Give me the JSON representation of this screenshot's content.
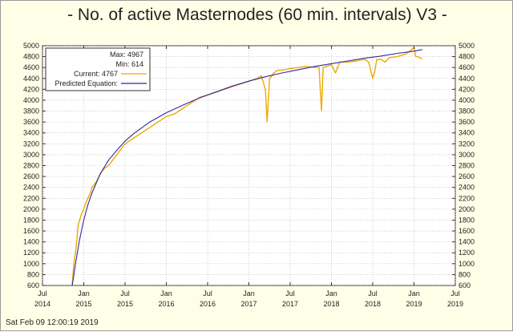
{
  "timestamp": "Sat Feb 09 12:00:19 2019",
  "chart_data": {
    "type": "line",
    "title": "- No. of active Masternodes (60 min. intervals) V3 -",
    "ylim": [
      600,
      5000
    ],
    "yticks": [
      600,
      800,
      1000,
      1200,
      1400,
      1600,
      1800,
      2000,
      2200,
      2400,
      2600,
      2800,
      3000,
      3200,
      3400,
      3600,
      3800,
      4000,
      4200,
      4400,
      4600,
      4800,
      5000
    ],
    "xlim": [
      2014.5,
      2019.5
    ],
    "xticks": [
      {
        "pos": 2014.5,
        "month": "Jul",
        "year": "2014"
      },
      {
        "pos": 2015.0,
        "month": "Jan",
        "year": "2015"
      },
      {
        "pos": 2015.5,
        "month": "Jul",
        "year": "2015"
      },
      {
        "pos": 2016.0,
        "month": "Jan",
        "year": "2016"
      },
      {
        "pos": 2016.5,
        "month": "Jul",
        "year": "2016"
      },
      {
        "pos": 2017.0,
        "month": "Jan",
        "year": "2017"
      },
      {
        "pos": 2017.5,
        "month": "Jul",
        "year": "2017"
      },
      {
        "pos": 2018.0,
        "month": "Jan",
        "year": "2018"
      },
      {
        "pos": 2018.5,
        "month": "Jul",
        "year": "2018"
      },
      {
        "pos": 2019.0,
        "month": "Jan",
        "year": "2019"
      },
      {
        "pos": 2019.5,
        "month": "Jul",
        "year": "2019"
      }
    ],
    "legend": {
      "position": "top-left",
      "max_label": "Max: 4967",
      "min_label": "Min: 614",
      "current_label": "Current: 4767",
      "predicted_label": "Predicted Equation:"
    },
    "series": [
      {
        "name": "Current",
        "color": "#F0A800",
        "x": [
          2014.86,
          2014.88,
          2014.9,
          2014.92,
          2014.93,
          2014.95,
          2014.97,
          2015.0,
          2015.02,
          2015.05,
          2015.08,
          2015.1,
          2015.15,
          2015.2,
          2015.25,
          2015.3,
          2015.35,
          2015.4,
          2015.45,
          2015.5,
          2015.6,
          2015.7,
          2015.8,
          2015.9,
          2016.0,
          2016.1,
          2016.2,
          2016.3,
          2016.4,
          2016.5,
          2016.6,
          2016.7,
          2016.8,
          2016.9,
          2017.0,
          2017.1,
          2017.15,
          2017.2,
          2017.22,
          2017.25,
          2017.28,
          2017.3,
          2017.35,
          2017.4,
          2017.5,
          2017.6,
          2017.7,
          2017.8,
          2017.85,
          2017.88,
          2017.9,
          2018.0,
          2018.05,
          2018.1,
          2018.2,
          2018.3,
          2018.4,
          2018.45,
          2018.5,
          2018.52,
          2018.55,
          2018.6,
          2018.65,
          2018.7,
          2018.8,
          2018.9,
          2018.95,
          2019.0,
          2019.02,
          2019.05,
          2019.08,
          2019.1
        ],
        "y": [
          614,
          1000,
          1200,
          1500,
          1700,
          1800,
          1900,
          2000,
          2100,
          2200,
          2300,
          2400,
          2500,
          2650,
          2750,
          2800,
          2900,
          3000,
          3100,
          3200,
          3300,
          3400,
          3500,
          3600,
          3700,
          3750,
          3850,
          3950,
          4050,
          4100,
          4150,
          4200,
          4250,
          4300,
          4350,
          4400,
          4450,
          4200,
          3600,
          4400,
          4450,
          4500,
          4550,
          4550,
          4580,
          4600,
          4620,
          4600,
          4600,
          3800,
          4600,
          4650,
          4500,
          4700,
          4700,
          4720,
          4750,
          4700,
          4400,
          4500,
          4750,
          4750,
          4700,
          4780,
          4800,
          4850,
          4900,
          4967,
          4800,
          4800,
          4767,
          4767
        ]
      },
      {
        "name": "Predicted Equation",
        "color": "#2B2BA0",
        "x": [
          2014.86,
          2014.9,
          2014.95,
          2015.0,
          2015.05,
          2015.1,
          2015.2,
          2015.3,
          2015.4,
          2015.5,
          2015.6,
          2015.8,
          2016.0,
          2016.2,
          2016.4,
          2016.6,
          2016.8,
          2017.0,
          2017.2,
          2017.4,
          2017.6,
          2017.8,
          2018.0,
          2018.2,
          2018.4,
          2018.6,
          2018.8,
          2019.0,
          2019.1
        ],
        "y": [
          600,
          1000,
          1450,
          1800,
          2080,
          2300,
          2650,
          2900,
          3080,
          3250,
          3380,
          3600,
          3770,
          3910,
          4040,
          4150,
          4260,
          4350,
          4430,
          4500,
          4560,
          4620,
          4670,
          4720,
          4770,
          4810,
          4860,
          4900,
          4930
        ]
      }
    ]
  }
}
